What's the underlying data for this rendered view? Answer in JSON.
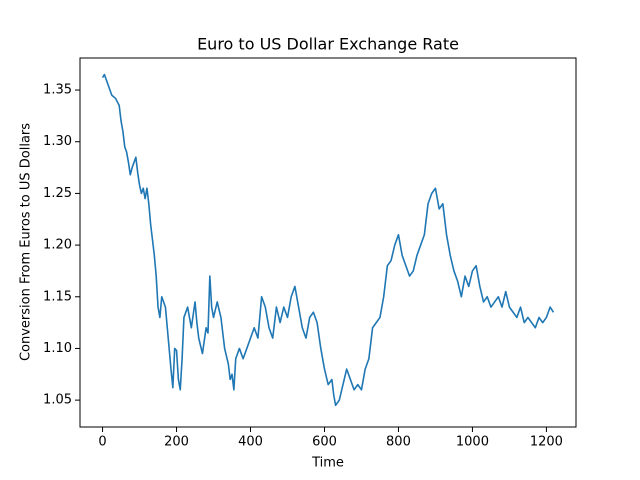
{
  "chart_data": {
    "type": "line",
    "title": "Euro to US Dollar Exchange Rate",
    "x_label": "Time",
    "y_label": "Conversion From Euros to US Dollars",
    "x": [
      0,
      5,
      15,
      25,
      35,
      45,
      50,
      55,
      60,
      65,
      70,
      75,
      80,
      90,
      95,
      100,
      105,
      110,
      115,
      120,
      125,
      130,
      135,
      140,
      145,
      150,
      155,
      160,
      170,
      175,
      180,
      185,
      190,
      195,
      200,
      205,
      210,
      215,
      220,
      230,
      240,
      250,
      255,
      260,
      270,
      280,
      285,
      290,
      295,
      300,
      310,
      320,
      330,
      340,
      345,
      350,
      355,
      360,
      370,
      380,
      390,
      400,
      410,
      420,
      430,
      440,
      450,
      460,
      470,
      480,
      490,
      500,
      510,
      520,
      530,
      540,
      550,
      560,
      570,
      580,
      590,
      600,
      610,
      620,
      625,
      630,
      640,
      650,
      660,
      670,
      680,
      690,
      700,
      710,
      720,
      730,
      740,
      750,
      760,
      770,
      780,
      790,
      800,
      810,
      820,
      830,
      840,
      850,
      860,
      870,
      880,
      890,
      900,
      910,
      920,
      930,
      940,
      950,
      960,
      970,
      980,
      990,
      1000,
      1010,
      1020,
      1030,
      1040,
      1050,
      1060,
      1070,
      1080,
      1090,
      1100,
      1110,
      1120,
      1130,
      1140,
      1150,
      1160,
      1170,
      1180,
      1190,
      1200,
      1210,
      1219
    ],
    "series": [
      {
        "name": "Euro to US Dollar",
        "color": "#1f77b4",
        "values": [
          1.362,
          1.365,
          1.355,
          1.345,
          1.342,
          1.335,
          1.32,
          1.31,
          1.295,
          1.29,
          1.28,
          1.268,
          1.275,
          1.285,
          1.27,
          1.258,
          1.25,
          1.255,
          1.245,
          1.255,
          1.24,
          1.22,
          1.205,
          1.19,
          1.17,
          1.14,
          1.13,
          1.15,
          1.14,
          1.12,
          1.1,
          1.08,
          1.062,
          1.1,
          1.098,
          1.07,
          1.06,
          1.09,
          1.13,
          1.14,
          1.12,
          1.145,
          1.125,
          1.11,
          1.095,
          1.12,
          1.115,
          1.17,
          1.14,
          1.13,
          1.145,
          1.13,
          1.1,
          1.085,
          1.07,
          1.075,
          1.06,
          1.09,
          1.1,
          1.09,
          1.1,
          1.11,
          1.12,
          1.11,
          1.15,
          1.14,
          1.12,
          1.11,
          1.14,
          1.125,
          1.14,
          1.13,
          1.15,
          1.16,
          1.14,
          1.12,
          1.11,
          1.13,
          1.135,
          1.125,
          1.1,
          1.08,
          1.065,
          1.07,
          1.055,
          1.045,
          1.05,
          1.065,
          1.08,
          1.07,
          1.06,
          1.065,
          1.06,
          1.08,
          1.09,
          1.12,
          1.125,
          1.13,
          1.15,
          1.18,
          1.185,
          1.2,
          1.21,
          1.19,
          1.18,
          1.17,
          1.175,
          1.19,
          1.2,
          1.21,
          1.24,
          1.25,
          1.255,
          1.235,
          1.24,
          1.21,
          1.19,
          1.175,
          1.165,
          1.15,
          1.17,
          1.16,
          1.175,
          1.18,
          1.16,
          1.145,
          1.15,
          1.14,
          1.145,
          1.15,
          1.14,
          1.155,
          1.14,
          1.135,
          1.13,
          1.14,
          1.125,
          1.13,
          1.125,
          1.12,
          1.13,
          1.125,
          1.13,
          1.14,
          1.135
        ]
      }
    ],
    "xlim": [
      -61,
      1280
    ],
    "ylim": [
      1.024,
      1.381
    ],
    "xticks": [
      0,
      200,
      400,
      600,
      800,
      1000,
      1200
    ],
    "yticks": [
      1.05,
      {
        "value": 1.1,
        "label": "1.10"
      },
      1.15,
      {
        "value": 1.2,
        "label": "1.20"
      },
      1.25,
      {
        "value": 1.3,
        "label": "1.30"
      },
      1.35
    ],
    "grid": false
  }
}
